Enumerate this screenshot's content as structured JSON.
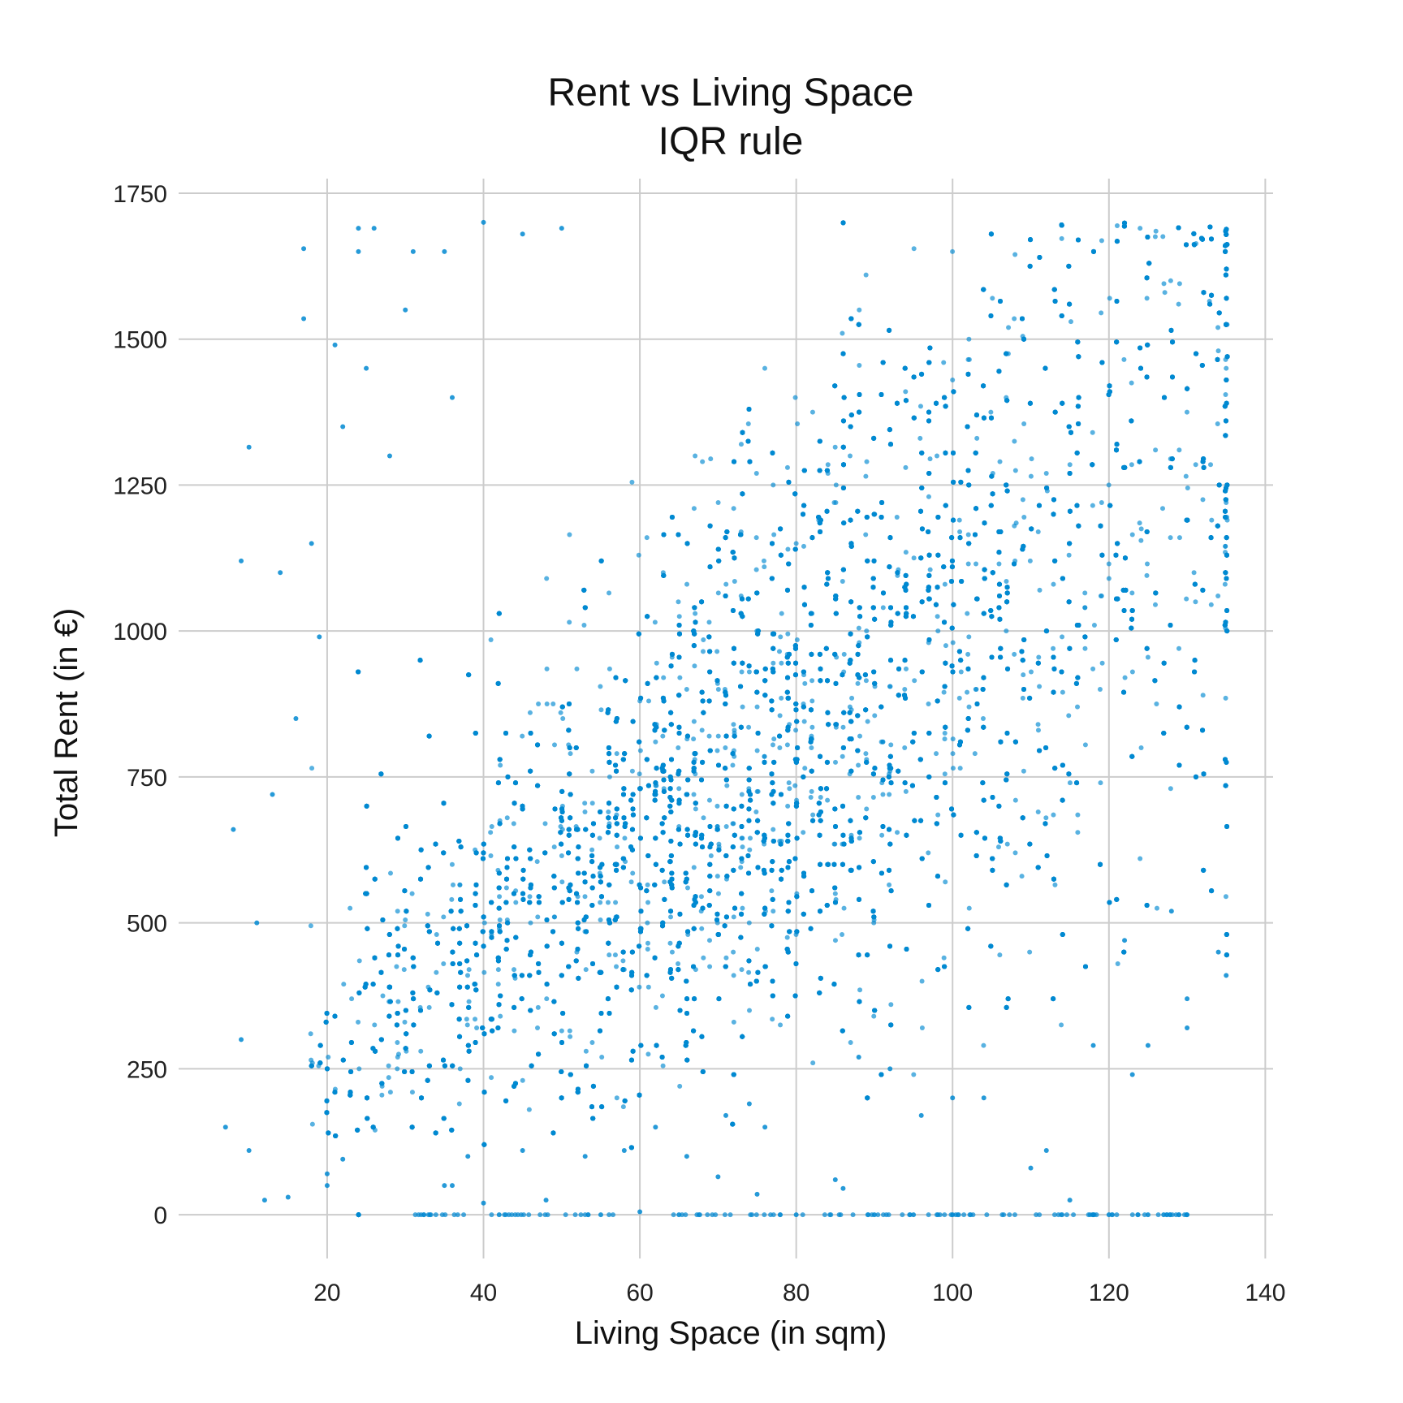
{
  "chart_data": {
    "type": "scatter",
    "title": "Rent vs Living Space",
    "subtitle": "IQR rule",
    "xlabel": "Living Space (in sqm)",
    "ylabel": "Total Rent (in €)",
    "xlim": [
      1,
      141
    ],
    "ylim": [
      -75,
      1775
    ],
    "xticks": [
      20,
      40,
      60,
      80,
      100,
      120,
      140
    ],
    "yticks": [
      0,
      250,
      500,
      750,
      1000,
      1250,
      1500,
      1750
    ],
    "grid": true,
    "legend": "none",
    "color": "#0088d1",
    "series": [
      {
        "description_free": true,
        "points": [
          [
            17,
            1655
          ],
          [
            17,
            1535
          ],
          [
            10,
            1315
          ],
          [
            9,
            1120
          ],
          [
            24,
            1690
          ],
          [
            26,
            1690
          ],
          [
            24,
            1650
          ],
          [
            21,
            1490
          ],
          [
            25,
            1450
          ],
          [
            14,
            1100
          ],
          [
            8,
            660
          ],
          [
            7,
            150
          ],
          [
            12,
            25
          ],
          [
            15,
            30
          ],
          [
            20,
            70
          ],
          [
            20,
            50
          ],
          [
            22,
            95
          ],
          [
            30,
            1550
          ],
          [
            31,
            1650
          ],
          [
            35,
            1650
          ],
          [
            40,
            1700
          ],
          [
            45,
            1680
          ],
          [
            50,
            1690
          ],
          [
            36,
            1400
          ],
          [
            28,
            1300
          ],
          [
            22,
            1350
          ],
          [
            18,
            1150
          ],
          [
            19,
            990
          ],
          [
            16,
            850
          ],
          [
            13,
            720
          ],
          [
            11,
            500
          ],
          [
            9,
            300
          ],
          [
            10,
            110
          ],
          [
            35,
            50
          ],
          [
            36,
            50
          ],
          [
            38,
            100
          ],
          [
            42,
            0
          ],
          [
            48,
            25
          ],
          [
            55,
            0
          ],
          [
            60,
            5
          ],
          [
            65,
            0
          ],
          [
            70,
            65
          ],
          [
            75,
            35
          ],
          [
            80,
            0
          ],
          [
            85,
            60
          ],
          [
            86,
            45
          ],
          [
            90,
            0
          ],
          [
            95,
            0
          ],
          [
            100,
            0
          ],
          [
            110,
            80
          ],
          [
            112,
            110
          ],
          [
            115,
            25
          ],
          [
            118,
            0
          ],
          [
            120,
            0
          ],
          [
            125,
            0
          ],
          [
            127,
            0
          ],
          [
            130,
            0
          ],
          [
            123,
            240
          ],
          [
            125,
            290
          ],
          [
            130,
            320
          ],
          [
            134,
            450
          ],
          [
            135,
            410
          ],
          [
            130,
            370
          ],
          [
            122,
            470
          ],
          [
            128,
            520
          ],
          [
            118,
            290
          ],
          [
            104,
            200
          ],
          [
            100,
            200
          ],
          [
            96,
            170
          ],
          [
            92,
            250
          ],
          [
            88,
            270
          ],
          [
            76,
            150
          ],
          [
            74,
            190
          ],
          [
            71,
            170
          ],
          [
            66,
            100
          ],
          [
            62,
            150
          ],
          [
            58,
            110
          ],
          [
            53,
            100
          ],
          [
            45,
            110
          ],
          [
            40,
            20
          ]
        ]
      }
    ]
  }
}
